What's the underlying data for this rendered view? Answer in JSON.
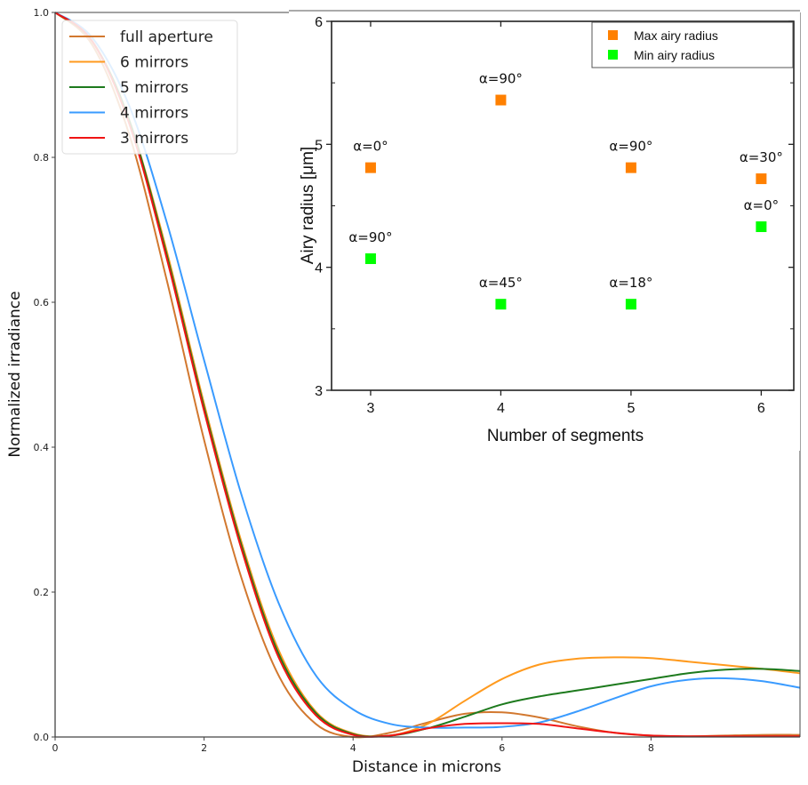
{
  "chart_data": [
    {
      "type": "line",
      "title": "",
      "xlabel": "Distance in microns",
      "ylabel": "Normalized irradiance",
      "xlim": [
        0,
        10
      ],
      "ylim": [
        0,
        1.0
      ],
      "x_ticks": [
        "0",
        "2",
        "4",
        "6",
        "8"
      ],
      "y_ticks": [
        "0.0",
        "0.2",
        "0.4",
        "0.6",
        "0.8",
        "1.0"
      ],
      "grid": false,
      "legend_position": "top-left",
      "series": [
        {
          "name": "full aperture",
          "color": "#d2782f",
          "x": [
            0,
            0.5,
            1,
            1.5,
            2,
            2.5,
            3,
            3.5,
            4,
            4.5,
            5,
            5.5,
            6,
            6.5,
            7,
            7.5,
            8,
            8.5,
            9,
            9.5,
            10
          ],
          "y": [
            1.0,
            0.955,
            0.83,
            0.63,
            0.41,
            0.22,
            0.085,
            0.018,
            0.0,
            0.006,
            0.02,
            0.032,
            0.034,
            0.027,
            0.015,
            0.006,
            0.002,
            0.001,
            0.002,
            0.003,
            0.003
          ]
        },
        {
          "name": "6 mirrors",
          "color": "#ff9a1e",
          "x": [
            0,
            0.5,
            1,
            1.5,
            2,
            2.5,
            3,
            3.5,
            4,
            4.5,
            5,
            5.5,
            6,
            6.5,
            7,
            7.5,
            8,
            8.5,
            9,
            9.5,
            10
          ],
          "y": [
            1.0,
            0.96,
            0.85,
            0.67,
            0.46,
            0.27,
            0.12,
            0.035,
            0.005,
            0.002,
            0.018,
            0.05,
            0.08,
            0.1,
            0.108,
            0.11,
            0.109,
            0.104,
            0.099,
            0.094,
            0.088
          ]
        },
        {
          "name": "5 mirrors",
          "color": "#1d7a1d",
          "x": [
            0,
            0.5,
            1,
            1.5,
            2,
            2.5,
            3,
            3.5,
            4,
            4.5,
            5,
            5.5,
            6,
            6.5,
            7,
            7.5,
            8,
            8.5,
            9,
            9.5,
            10
          ],
          "y": [
            1.0,
            0.96,
            0.85,
            0.665,
            0.455,
            0.265,
            0.115,
            0.033,
            0.004,
            0.002,
            0.012,
            0.028,
            0.045,
            0.056,
            0.064,
            0.072,
            0.08,
            0.088,
            0.093,
            0.094,
            0.091
          ]
        },
        {
          "name": "4 mirrors",
          "color": "#3a9bff",
          "x": [
            0,
            0.5,
            1,
            1.5,
            2,
            2.5,
            3,
            3.5,
            4,
            4.5,
            5,
            5.5,
            6,
            6.5,
            7,
            7.5,
            8,
            8.5,
            9,
            9.5,
            10
          ],
          "y": [
            1.0,
            0.965,
            0.87,
            0.71,
            0.52,
            0.335,
            0.185,
            0.085,
            0.038,
            0.018,
            0.013,
            0.013,
            0.014,
            0.02,
            0.035,
            0.053,
            0.07,
            0.079,
            0.081,
            0.077,
            0.068
          ]
        },
        {
          "name": "3 mirrors",
          "color": "#f01414",
          "x": [
            0,
            0.5,
            1,
            1.5,
            2,
            2.5,
            3,
            3.5,
            4,
            4.5,
            5,
            5.5,
            6,
            6.5,
            7,
            7.5,
            8,
            8.5,
            9,
            9.5,
            10
          ],
          "y": [
            1.0,
            0.96,
            0.845,
            0.66,
            0.45,
            0.26,
            0.11,
            0.03,
            0.003,
            0.002,
            0.012,
            0.018,
            0.019,
            0.018,
            0.012,
            0.006,
            0.002,
            0.001,
            0.001,
            0.001,
            0.001
          ]
        }
      ]
    },
    {
      "type": "scatter",
      "title": "",
      "xlabel": "Number of segments",
      "ylabel": "Airy radius [μm]",
      "xlim": [
        2.7,
        6.25
      ],
      "ylim": [
        3,
        6
      ],
      "x_ticks": [
        "3",
        "4",
        "5",
        "6"
      ],
      "y_ticks": [
        "3",
        "4",
        "5",
        "6"
      ],
      "grid": false,
      "legend_position": "top-right",
      "series": [
        {
          "name": "Max airy radius",
          "color": "#ff8000",
          "x": [
            3,
            4,
            5,
            6
          ],
          "y": [
            4.81,
            5.36,
            4.81,
            4.72
          ],
          "labels": [
            "α=0°",
            "α=90°",
            "α=90°",
            "α=30°"
          ]
        },
        {
          "name": "Min airy radius",
          "color": "#00ff00",
          "x": [
            3,
            4,
            5,
            6
          ],
          "y": [
            4.07,
            3.7,
            3.7,
            4.33
          ],
          "labels": [
            "α=90°",
            "α=45°",
            "α=18°",
            "α=0°"
          ]
        }
      ]
    }
  ]
}
